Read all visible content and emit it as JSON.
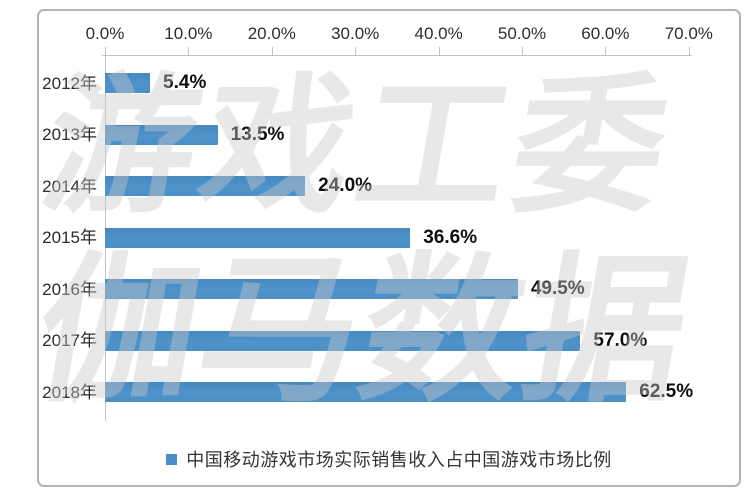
{
  "chart_data": {
    "type": "bar",
    "orientation": "horizontal",
    "title": "",
    "categories": [
      "2012年",
      "2013年",
      "2014年",
      "2015年",
      "2016年",
      "2017年",
      "2018年"
    ],
    "values": [
      5.4,
      13.5,
      24.0,
      36.6,
      49.5,
      57.0,
      62.5
    ],
    "value_labels": [
      "5.4%",
      "13.5%",
      "24.0%",
      "36.6%",
      "49.5%",
      "57.0%",
      "62.5%"
    ],
    "x_ticks": [
      "0.0%",
      "10.0%",
      "20.0%",
      "30.0%",
      "40.0%",
      "50.0%",
      "60.0%",
      "70.0%"
    ],
    "xlim": [
      0,
      70
    ],
    "grid": false,
    "legend_position": "bottom",
    "legend": {
      "label": "中国移动游戏市场实际销售收入占中国游戏市场比例",
      "color": "#4a8fc7"
    }
  },
  "watermark": {
    "line1": "游戏工委",
    "line2": "伽马数据"
  },
  "colors": {
    "bar": "#4a8fc7",
    "axis_line": "#c4c4c4",
    "axis_text": "#2e2e2e",
    "value_text": "#0e0e0e",
    "frame_border": "#adb5ba",
    "watermark_text": "rgba(200,200,200,0.42)"
  }
}
